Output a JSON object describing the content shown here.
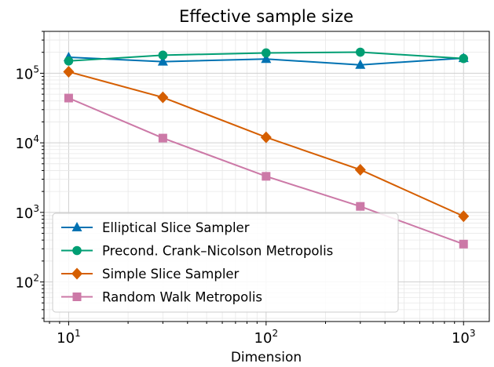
{
  "chart_data": {
    "type": "line",
    "title": "Effective sample size",
    "xlabel": "Dimension",
    "ylabel": "",
    "xscale": "log",
    "yscale": "log",
    "xlim": [
      7.5,
      1350
    ],
    "ylim": [
      27,
      400000
    ],
    "grid": true,
    "legend_position": "lower-left",
    "x_ticks": [
      {
        "base": "10",
        "exp": "1"
      },
      {
        "base": "10",
        "exp": "2"
      },
      {
        "base": "10",
        "exp": "3"
      }
    ],
    "y_ticks": [
      {
        "base": "10",
        "exp": "2"
      },
      {
        "base": "10",
        "exp": "3"
      },
      {
        "base": "10",
        "exp": "4"
      },
      {
        "base": "10",
        "exp": "5"
      }
    ],
    "x": [
      10,
      30,
      100,
      300,
      1000
    ],
    "series": [
      {
        "name": "Elliptical Slice Sampler",
        "color": "#0072B2",
        "marker": "triangle",
        "values": [
          170000,
          147000,
          160000,
          132000,
          165000
        ]
      },
      {
        "name": "Precond. Crank–Nicolson Metropolis",
        "color": "#009E73",
        "marker": "circle",
        "values": [
          150000,
          182000,
          196000,
          201000,
          163000
        ]
      },
      {
        "name": "Simple Slice Sampler",
        "color": "#D55E00",
        "marker": "diamond",
        "values": [
          105000,
          45000,
          12000,
          4100,
          880
        ]
      },
      {
        "name": "Random Walk Metropolis",
        "color": "#CC79A7",
        "marker": "square",
        "values": [
          44000,
          11700,
          3300,
          1220,
          350
        ]
      }
    ]
  }
}
